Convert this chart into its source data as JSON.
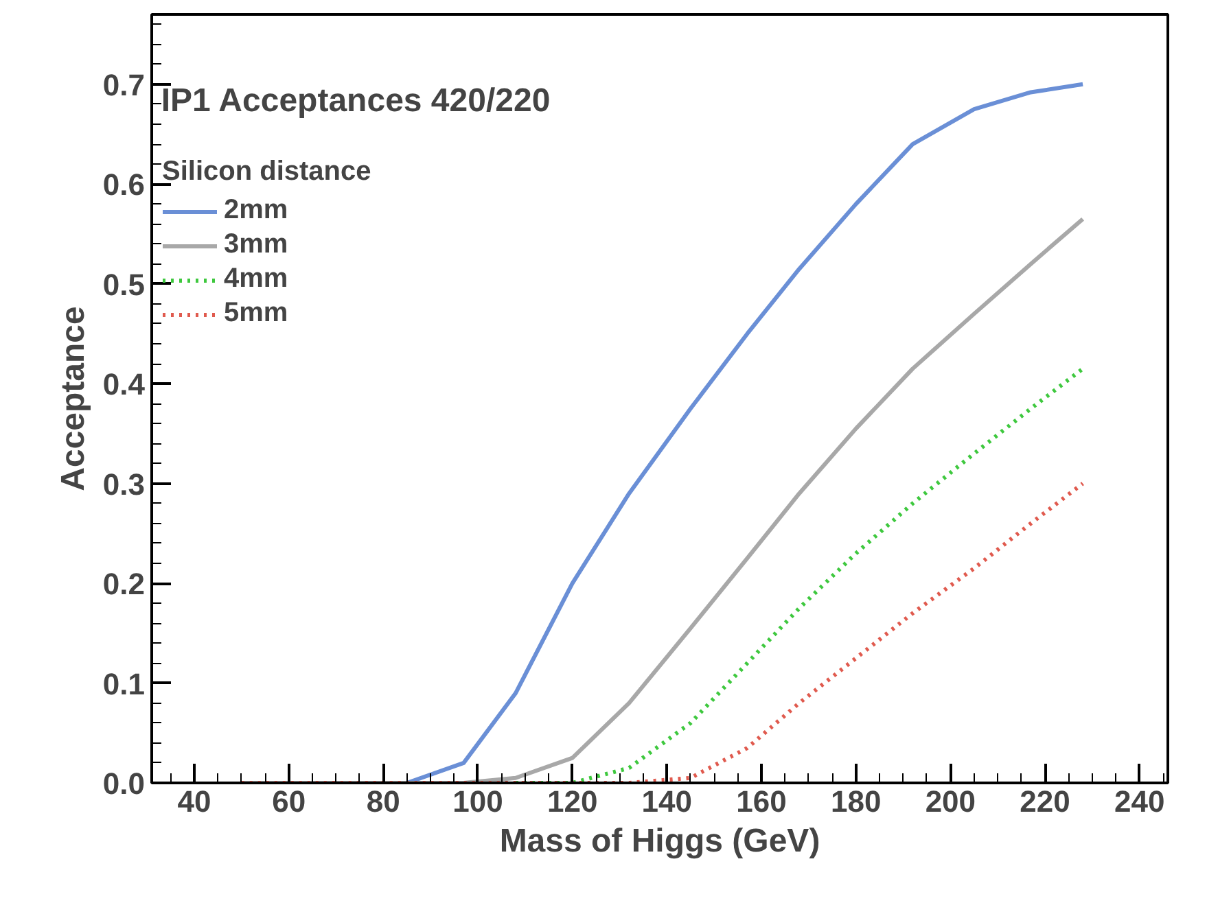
{
  "chart_data": {
    "type": "line",
    "title": "IP1  Acceptances 420/220",
    "xlabel": "Mass of Higgs (GeV)",
    "ylabel": "Acceptance",
    "legend_title": "Silicon distance",
    "legend": "top left",
    "grid": false,
    "x": [
      50,
      85,
      97,
      108,
      120,
      132,
      145,
      157,
      168,
      180,
      192,
      205,
      217,
      228
    ],
    "xlim": [
      31,
      246
    ],
    "ylim": [
      0,
      0.77
    ],
    "xticks": [
      40,
      60,
      80,
      100,
      120,
      140,
      160,
      180,
      200,
      220,
      240
    ],
    "yticks": [
      {
        "value": 0,
        "label": "0.0"
      },
      0.1,
      0.2,
      0.3,
      0.4,
      0.5,
      0.6,
      0.7
    ],
    "series": [
      {
        "name": "2mm",
        "color": "#6a8fd6",
        "line_style": "solid",
        "values": [
          0,
          0,
          0.02,
          0.09,
          0.2,
          0.29,
          0.375,
          0.45,
          0.515,
          0.58,
          0.64,
          0.675,
          0.692,
          0.7
        ]
      },
      {
        "name": "3mm",
        "color": "#a8a8a8",
        "line_style": "solid",
        "values": [
          0,
          0,
          0,
          0.005,
          0.025,
          0.08,
          0.155,
          0.225,
          0.29,
          0.355,
          0.415,
          0.47,
          0.52,
          0.565
        ]
      },
      {
        "name": "4mm",
        "color": "#3ec83e",
        "line_style": "dotted",
        "values": [
          null,
          null,
          null,
          0,
          0,
          0.015,
          0.06,
          0.12,
          0.175,
          0.23,
          0.28,
          0.33,
          0.375,
          0.415
        ]
      },
      {
        "name": "5mm",
        "color": "#e05a4e",
        "line_style": "dotted",
        "values": [
          0,
          0,
          0,
          0,
          0,
          0,
          0.005,
          0.035,
          0.08,
          0.125,
          0.17,
          0.215,
          0.26,
          0.3
        ]
      }
    ]
  }
}
